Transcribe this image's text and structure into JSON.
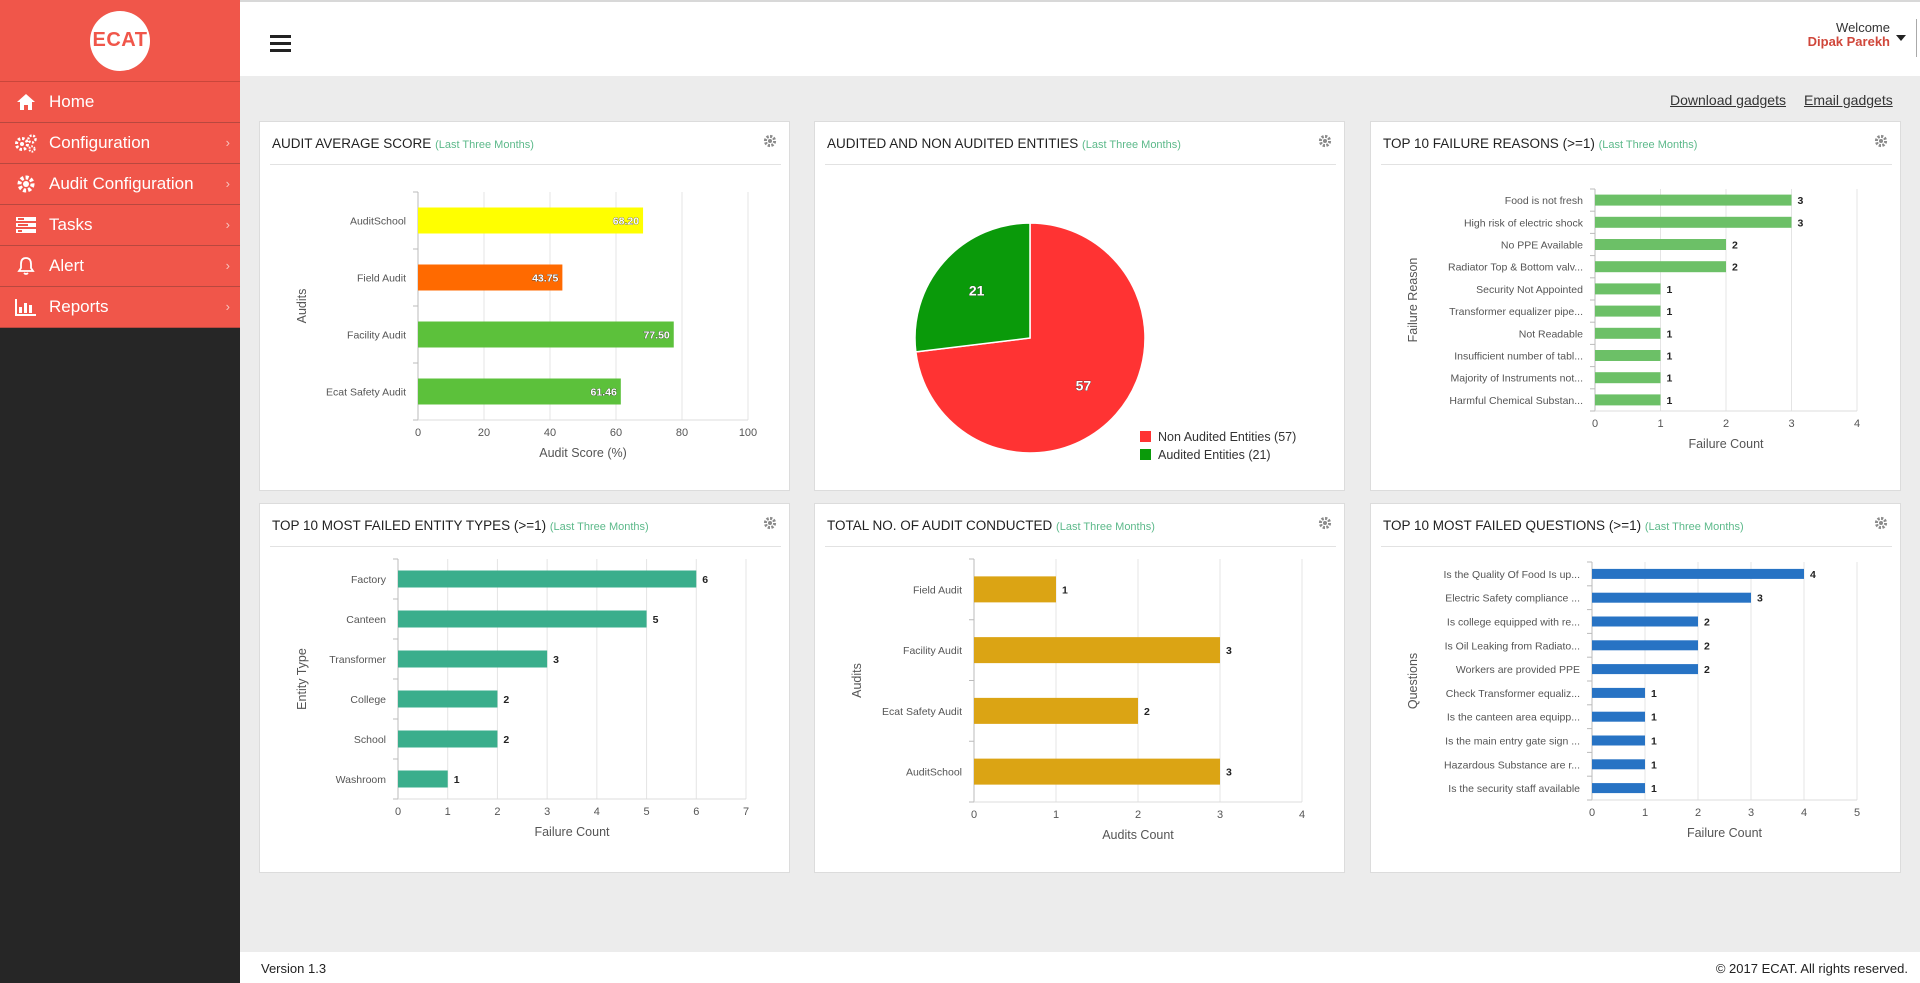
{
  "brand": {
    "logo_text": "ECAT"
  },
  "nav": [
    {
      "label": "Home",
      "icon": "home-icon",
      "chevron": false
    },
    {
      "label": "Configuration",
      "icon": "gears-icon",
      "chevron": true
    },
    {
      "label": "Audit Configuration",
      "icon": "gear-icon",
      "chevron": true
    },
    {
      "label": "Tasks",
      "icon": "tasks-icon",
      "chevron": true
    },
    {
      "label": "Alert",
      "icon": "bell-icon",
      "chevron": true
    },
    {
      "label": "Reports",
      "icon": "bar-chart-icon",
      "chevron": true
    }
  ],
  "header": {
    "welcome": "Welcome",
    "user_name": "Dipak Parekh"
  },
  "links": {
    "download": "Download gadgets",
    "email": "Email gadgets"
  },
  "colors": {
    "accent": "#f0564a",
    "sidebar_bg": "#262626",
    "subtitle": "#5cb98a"
  },
  "panels": [
    {
      "title": "AUDIT AVERAGE SCORE",
      "subtitle": "(Last Three Months)"
    },
    {
      "title": "AUDITED AND NON AUDITED ENTITIES",
      "subtitle": "(Last Three Months)"
    },
    {
      "title": "TOP 10 FAILURE REASONS (>=1)",
      "subtitle": "(Last Three Months)"
    },
    {
      "title": "TOP 10 MOST FAILED ENTITY TYPES (>=1)",
      "subtitle": "(Last Three Months)"
    },
    {
      "title": "TOTAL NO. OF AUDIT CONDUCTED",
      "subtitle": "(Last Three Months)"
    },
    {
      "title": "TOP 10 MOST FAILED QUESTIONS (>=1)",
      "subtitle": "(Last Three Months)"
    }
  ],
  "chart_data": [
    {
      "type": "bar",
      "orientation": "horizontal",
      "categories": [
        "AuditSchool",
        "Field Audit",
        "Facility Audit",
        "Ecat Safety Audit"
      ],
      "values": [
        68.2,
        43.75,
        77.5,
        61.46
      ],
      "value_labels": [
        "68.20",
        "43.75",
        "77.50",
        "61.46"
      ],
      "colors": [
        "#ffff00",
        "#ff6a00",
        "#5cc13b",
        "#5cc13b"
      ],
      "xlabel": "Audit Score (%)",
      "ylabel": "Audits",
      "xlim": [
        0,
        100
      ],
      "xticks": [
        0,
        20,
        40,
        60,
        80,
        100
      ],
      "label_position": "inside-end",
      "grid": true
    },
    {
      "type": "pie",
      "categories": [
        "Non Audited Entities (57)",
        "Audited Entities (21)"
      ],
      "values": [
        57,
        21
      ],
      "colors": [
        "#ff3333",
        "#0a9a0a"
      ],
      "legend": "bottom-right"
    },
    {
      "type": "bar",
      "orientation": "horizontal",
      "categories": [
        "Food is not fresh",
        "High risk of electric shock",
        "No PPE Available",
        "Radiator Top & Bottom valv...",
        "Security Not Appointed",
        "Transformer equalizer pipe...",
        "Not Readable",
        "Insufficient number of tabl...",
        "Majority of Instruments not...",
        "Harmful Chemical Substan..."
      ],
      "values": [
        3,
        3,
        2,
        2,
        1,
        1,
        1,
        1,
        1,
        1
      ],
      "color": "#6cc067",
      "xlabel": "Failure Count",
      "ylabel": "Failure Reason",
      "xlim": [
        0,
        4
      ],
      "xticks": [
        0,
        1,
        2,
        3,
        4
      ],
      "label_position": "outside-end",
      "grid": true
    },
    {
      "type": "bar",
      "orientation": "horizontal",
      "categories": [
        "Factory",
        "Canteen",
        "Transformer",
        "College",
        "School",
        "Washroom"
      ],
      "values": [
        6,
        5,
        3,
        2,
        2,
        1
      ],
      "color": "#3aae8c",
      "xlabel": "Failure Count",
      "ylabel": "Entity Type",
      "xlim": [
        0,
        7
      ],
      "xticks": [
        0,
        1,
        2,
        3,
        4,
        5,
        6,
        7
      ],
      "label_position": "outside-end",
      "grid": true
    },
    {
      "type": "bar",
      "orientation": "horizontal",
      "categories": [
        "Field Audit",
        "Facility Audit",
        "Ecat Safety Audit",
        "AuditSchool"
      ],
      "values": [
        1,
        3,
        2,
        3
      ],
      "color": "#dba414",
      "xlabel": "Audits Count",
      "ylabel": "Audits",
      "xlim": [
        0,
        4
      ],
      "xticks": [
        0,
        1,
        2,
        3,
        4
      ],
      "label_position": "outside-end",
      "grid": true
    },
    {
      "type": "bar",
      "orientation": "horizontal",
      "categories": [
        "Is the Quality Of Food Is up...",
        "Electric Safety compliance ...",
        "Is college equipped with re...",
        "Is Oil Leaking from Radiato...",
        "Workers are provided PPE",
        "Check Transformer equaliz...",
        "Is the canteen area equipp...",
        "Is the main entry gate sign ...",
        "Hazardous Substance are r...",
        "Is the security staff available"
      ],
      "values": [
        4,
        3,
        2,
        2,
        2,
        1,
        1,
        1,
        1,
        1
      ],
      "color": "#2773c4",
      "xlabel": "Failure Count",
      "ylabel": "Questions",
      "xlim": [
        0,
        5
      ],
      "xticks": [
        0,
        1,
        2,
        3,
        4,
        5
      ],
      "label_position": "outside-end",
      "grid": true
    }
  ],
  "footer": {
    "version": "Version 1.3",
    "copyright": "© 2017 ECAT. All rights reserved."
  }
}
